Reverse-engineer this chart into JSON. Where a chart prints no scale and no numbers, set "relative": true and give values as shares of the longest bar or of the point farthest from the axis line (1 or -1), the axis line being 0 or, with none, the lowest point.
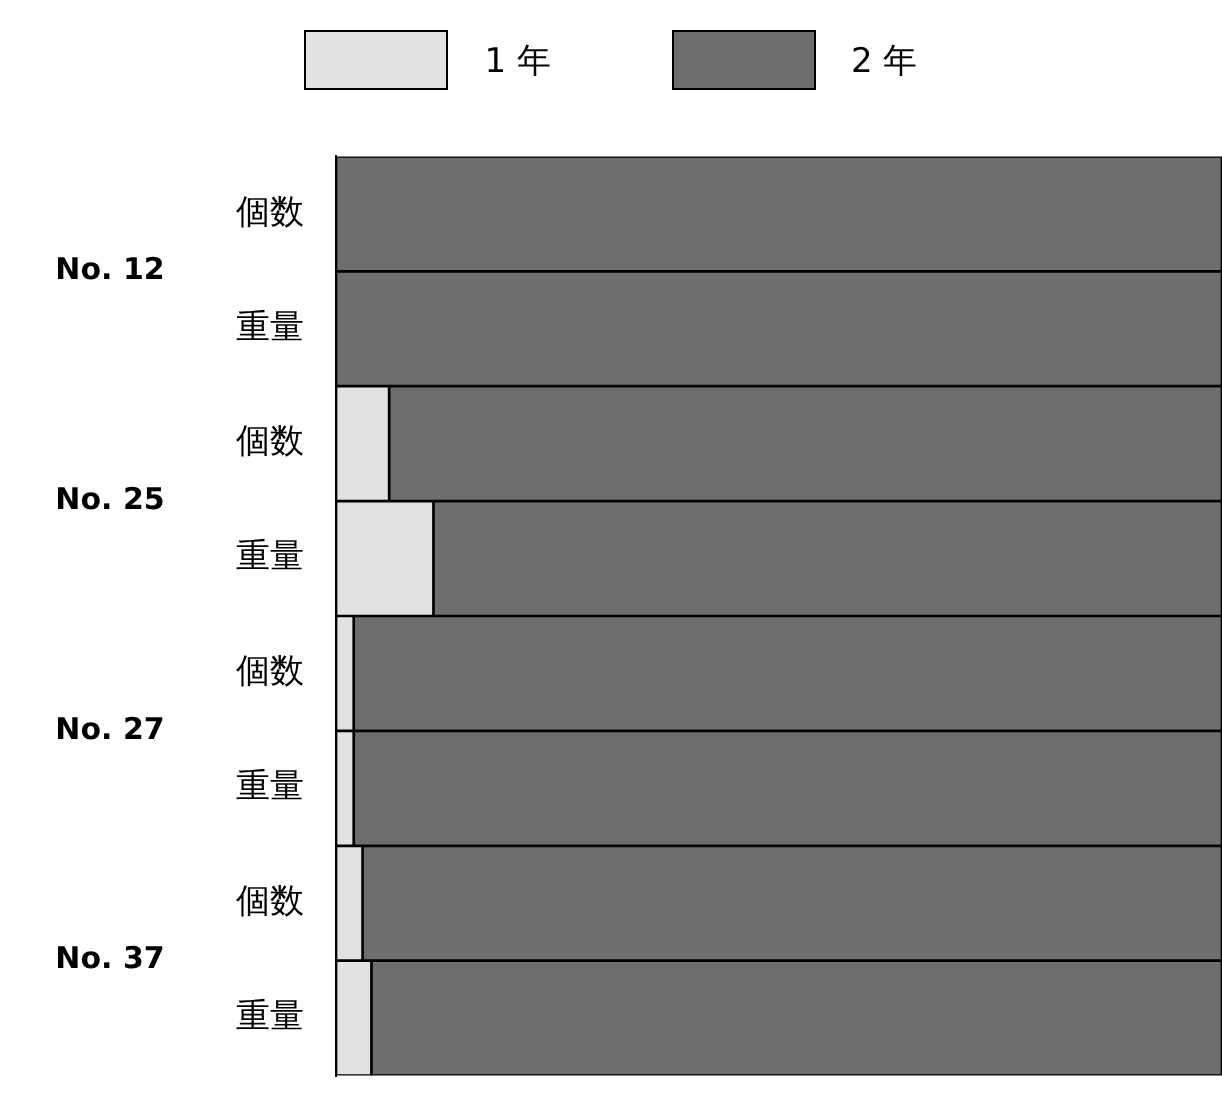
{
  "chart_data": {
    "type": "bar",
    "orientation": "horizontal",
    "stacked": true,
    "relative": true,
    "legend": "top",
    "categories": [
      "個数",
      "重量",
      "個数",
      "重量",
      "個数",
      "重量",
      "個数",
      "重量"
    ],
    "series": [
      {
        "name": "1 年",
        "color": "#e2e2e2",
        "values": [
          0,
          0,
          0.06,
          0.11,
          0.02,
          0.02,
          0.03,
          0.04
        ]
      },
      {
        "name": "2 年",
        "color": "#6e6e6e",
        "values": [
          1,
          1,
          0.94,
          0.89,
          0.98,
          0.98,
          0.97,
          0.96
        ]
      }
    ],
    "annotations": [
      "No. 12",
      "No. 25",
      "No. 27",
      "No. 37"
    ]
  }
}
